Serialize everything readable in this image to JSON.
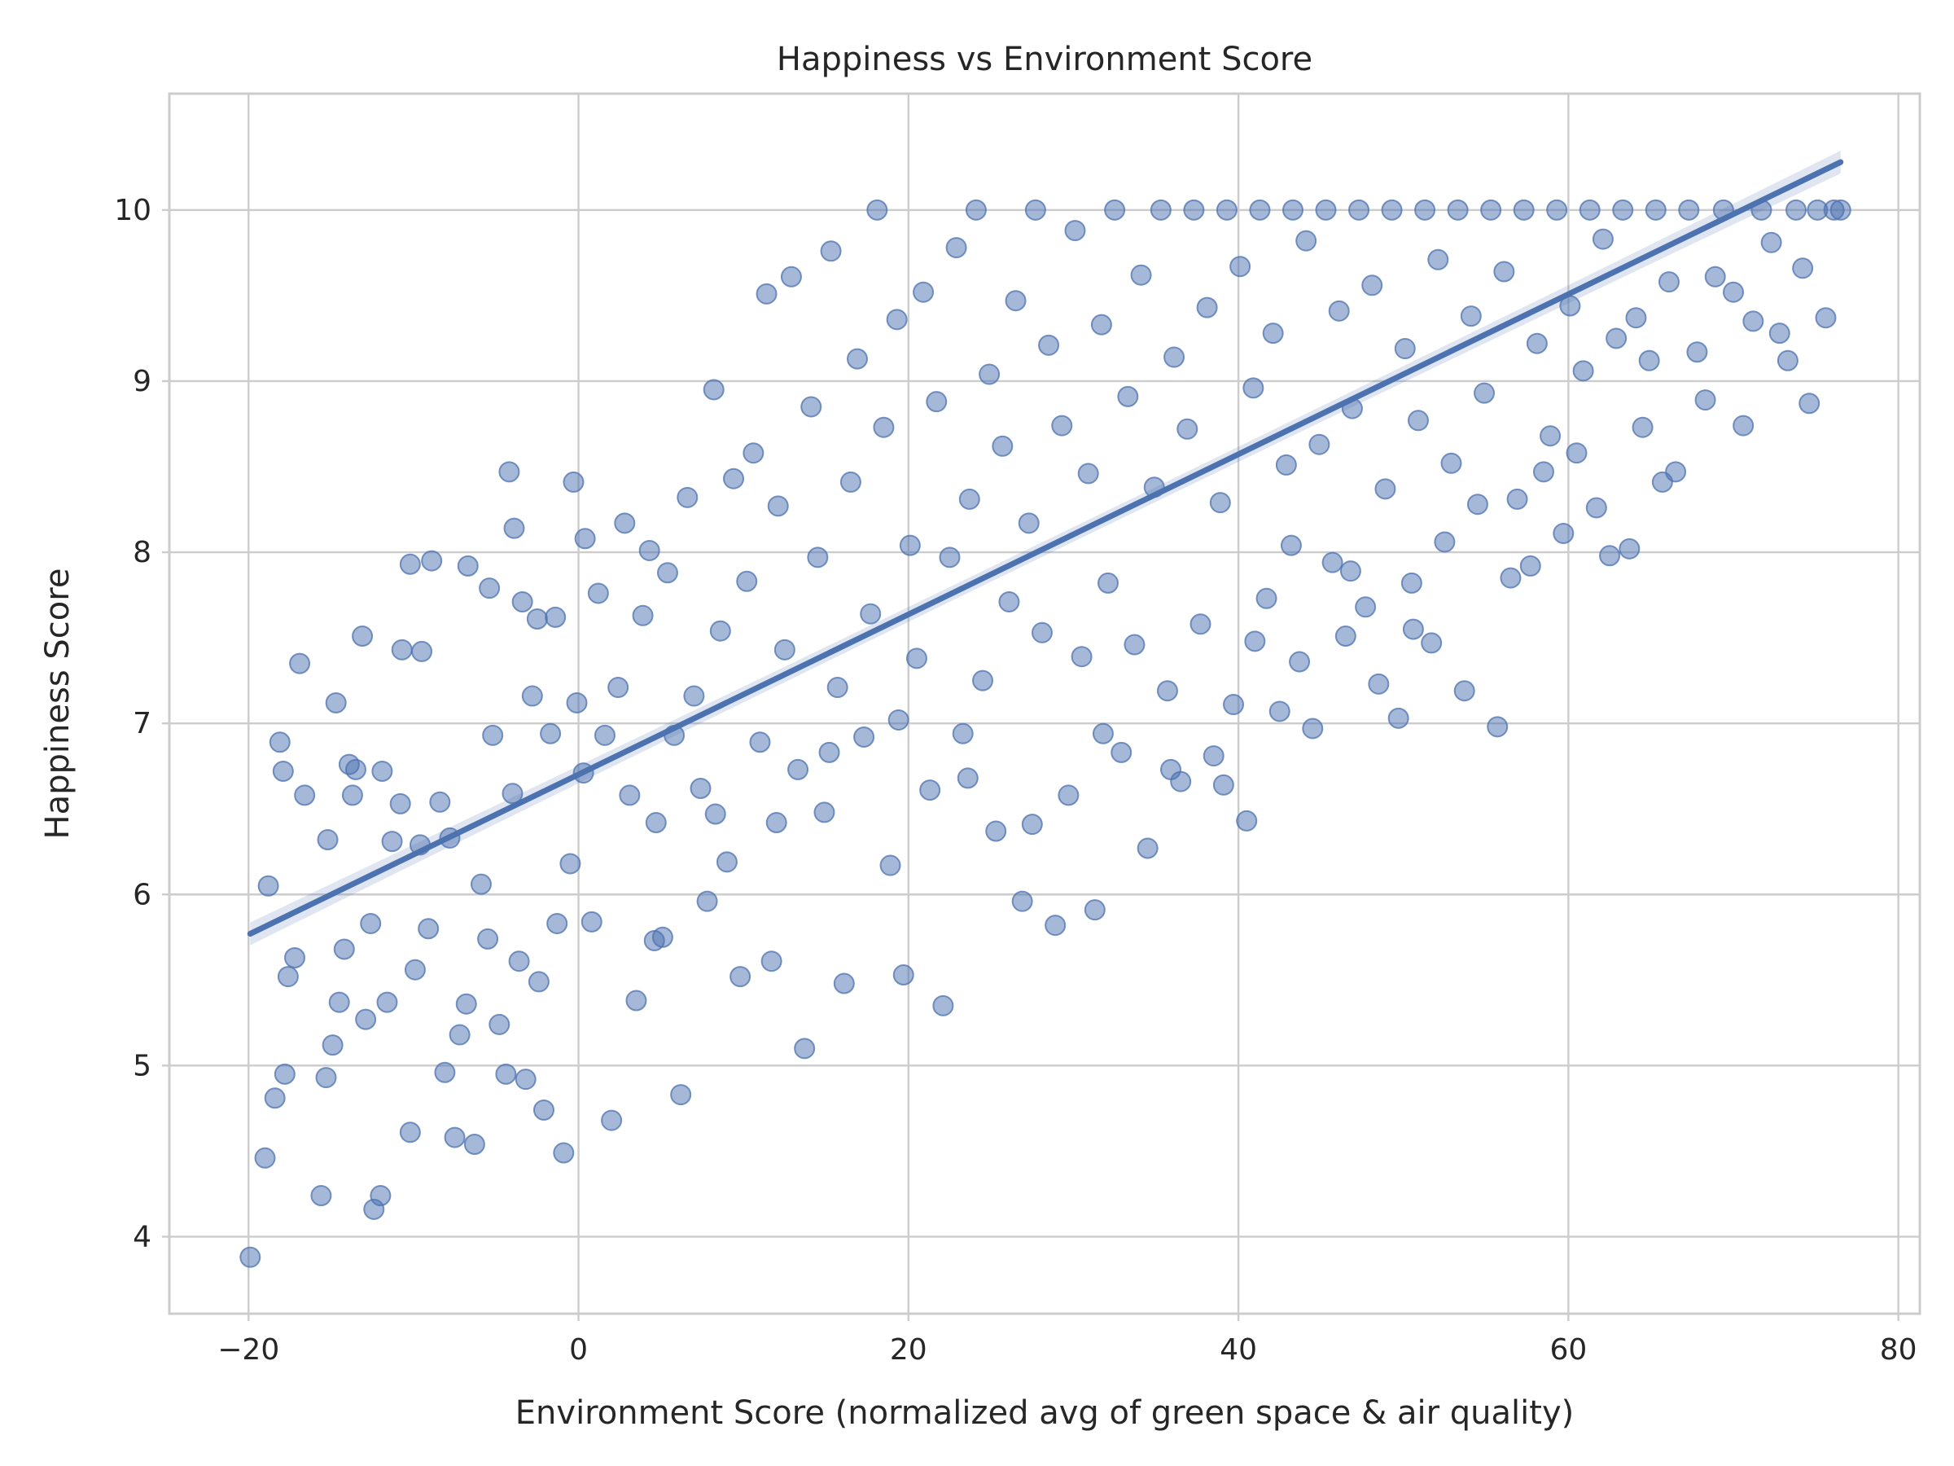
{
  "chart_data": {
    "type": "scatter",
    "title": "Happiness vs Environment Score",
    "xlabel": "Environment Score (normalized avg of green space & air quality)",
    "ylabel": "Happiness Score",
    "xlim": [
      -24.8,
      81.3
    ],
    "ylim": [
      3.55,
      10.68
    ],
    "xticks": [
      -20,
      0,
      20,
      40,
      60,
      80
    ],
    "xtick_labels": [
      "−20",
      "0",
      "20",
      "40",
      "60",
      "80"
    ],
    "yticks": [
      4,
      5,
      6,
      7,
      8,
      9,
      10
    ],
    "ytick_labels": [
      "4",
      "5",
      "6",
      "7",
      "8",
      "9",
      "10"
    ],
    "grid": true,
    "legend": "none",
    "point_color": "#4c72b0",
    "point_opacity": 0.5,
    "cap_value": 10,
    "regression_line": {
      "x": [
        -19.9,
        76.5
      ],
      "y": [
        5.77,
        10.28
      ],
      "color": "#4c72b0",
      "ci_band": true
    },
    "points": [
      [
        -19.9,
        3.88
      ],
      [
        -19.0,
        4.46
      ],
      [
        -18.4,
        4.81
      ],
      [
        -17.8,
        4.95
      ],
      [
        -17.2,
        5.63
      ],
      [
        -16.6,
        6.58
      ],
      [
        -17.9,
        6.72
      ],
      [
        -18.8,
        6.05
      ],
      [
        -18.1,
        6.89
      ],
      [
        -17.6,
        5.52
      ],
      [
        -15.6,
        4.24
      ],
      [
        -15.2,
        6.32
      ],
      [
        -14.9,
        5.12
      ],
      [
        -14.5,
        5.37
      ],
      [
        -14.2,
        5.68
      ],
      [
        -13.7,
        6.58
      ],
      [
        -13.5,
        6.73
      ],
      [
        -12.9,
        5.27
      ],
      [
        -12.4,
        4.16
      ],
      [
        -12.0,
        4.24
      ],
      [
        -11.6,
        5.37
      ],
      [
        -11.3,
        6.31
      ],
      [
        -10.8,
        6.53
      ],
      [
        -10.2,
        4.61
      ],
      [
        -9.9,
        5.56
      ],
      [
        -9.5,
        7.42
      ],
      [
        -9.1,
        5.8
      ],
      [
        -8.4,
        6.54
      ],
      [
        -8.1,
        4.96
      ],
      [
        -7.8,
        6.33
      ],
      [
        -7.5,
        4.58
      ],
      [
        -7.2,
        5.18
      ],
      [
        -6.8,
        5.36
      ],
      [
        -6.3,
        4.54
      ],
      [
        -5.9,
        6.06
      ],
      [
        -5.5,
        5.74
      ],
      [
        -5.2,
        6.93
      ],
      [
        -4.8,
        5.24
      ],
      [
        -4.4,
        4.95
      ],
      [
        -4.0,
        6.59
      ],
      [
        -3.6,
        5.61
      ],
      [
        -3.2,
        4.92
      ],
      [
        -2.8,
        7.16
      ],
      [
        -2.4,
        5.49
      ],
      [
        -2.1,
        4.74
      ],
      [
        -1.7,
        6.94
      ],
      [
        -1.3,
        5.83
      ],
      [
        -0.9,
        4.49
      ],
      [
        -0.5,
        6.18
      ],
      [
        -0.1,
        7.12
      ],
      [
        -16.9,
        7.35
      ],
      [
        -14.7,
        7.12
      ],
      [
        -13.1,
        7.51
      ],
      [
        -10.7,
        7.43
      ],
      [
        -10.2,
        7.93
      ],
      [
        -8.9,
        7.95
      ],
      [
        -6.7,
        7.92
      ],
      [
        -5.4,
        7.79
      ],
      [
        -3.9,
        8.14
      ],
      [
        -3.4,
        7.71
      ],
      [
        -4.2,
        8.47
      ],
      [
        -2.5,
        7.61
      ],
      [
        -1.4,
        7.62
      ],
      [
        -0.3,
        8.41
      ],
      [
        0.4,
        8.08
      ],
      [
        -15.3,
        4.93
      ],
      [
        -13.9,
        6.76
      ],
      [
        -12.6,
        5.83
      ],
      [
        -11.9,
        6.72
      ],
      [
        -9.6,
        6.29
      ],
      [
        0.3,
        6.71
      ],
      [
        0.8,
        5.84
      ],
      [
        1.2,
        7.76
      ],
      [
        1.6,
        6.93
      ],
      [
        2.0,
        4.68
      ],
      [
        2.4,
        7.21
      ],
      [
        2.8,
        8.17
      ],
      [
        3.1,
        6.58
      ],
      [
        3.5,
        5.38
      ],
      [
        3.9,
        7.63
      ],
      [
        4.3,
        8.01
      ],
      [
        4.7,
        6.42
      ],
      [
        5.1,
        5.75
      ],
      [
        5.4,
        7.88
      ],
      [
        5.8,
        6.93
      ],
      [
        6.2,
        4.83
      ],
      [
        6.6,
        8.32
      ],
      [
        7.0,
        7.16
      ],
      [
        7.4,
        6.62
      ],
      [
        7.8,
        5.96
      ],
      [
        8.2,
        8.95
      ],
      [
        8.6,
        7.54
      ],
      [
        9.0,
        6.19
      ],
      [
        9.4,
        8.43
      ],
      [
        9.8,
        5.52
      ],
      [
        10.2,
        7.83
      ],
      [
        10.6,
        8.58
      ],
      [
        11.0,
        6.89
      ],
      [
        11.4,
        9.51
      ],
      [
        11.7,
        5.61
      ],
      [
        12.1,
        8.27
      ],
      [
        12.5,
        7.43
      ],
      [
        12.9,
        9.61
      ],
      [
        13.3,
        6.73
      ],
      [
        13.7,
        5.1
      ],
      [
        14.1,
        8.85
      ],
      [
        14.5,
        7.97
      ],
      [
        14.9,
        6.48
      ],
      [
        15.3,
        9.76
      ],
      [
        15.7,
        7.21
      ],
      [
        16.1,
        5.48
      ],
      [
        16.5,
        8.41
      ],
      [
        16.9,
        9.13
      ],
      [
        17.3,
        6.92
      ],
      [
        17.7,
        7.64
      ],
      [
        18.1,
        10.0
      ],
      [
        18.5,
        8.73
      ],
      [
        18.9,
        6.17
      ],
      [
        19.3,
        9.36
      ],
      [
        19.7,
        5.53
      ],
      [
        20.1,
        8.04
      ],
      [
        20.5,
        7.38
      ],
      [
        20.9,
        9.52
      ],
      [
        21.3,
        6.61
      ],
      [
        21.7,
        8.88
      ],
      [
        22.1,
        5.35
      ],
      [
        22.5,
        7.97
      ],
      [
        22.9,
        9.78
      ],
      [
        23.3,
        6.94
      ],
      [
        23.7,
        8.31
      ],
      [
        24.1,
        10.0
      ],
      [
        24.5,
        7.25
      ],
      [
        24.9,
        9.04
      ],
      [
        25.3,
        6.37
      ],
      [
        25.7,
        8.62
      ],
      [
        26.1,
        7.71
      ],
      [
        26.5,
        9.47
      ],
      [
        26.9,
        5.96
      ],
      [
        27.3,
        8.17
      ],
      [
        27.7,
        10.0
      ],
      [
        28.1,
        7.53
      ],
      [
        28.5,
        9.21
      ],
      [
        28.9,
        5.82
      ],
      [
        29.3,
        8.74
      ],
      [
        29.7,
        6.58
      ],
      [
        30.1,
        9.88
      ],
      [
        30.5,
        7.39
      ],
      [
        30.9,
        8.46
      ],
      [
        31.3,
        5.91
      ],
      [
        31.7,
        9.33
      ],
      [
        32.1,
        7.82
      ],
      [
        32.5,
        10.0
      ],
      [
        32.9,
        6.83
      ],
      [
        33.3,
        8.91
      ],
      [
        33.7,
        7.46
      ],
      [
        34.1,
        9.62
      ],
      [
        34.5,
        6.27
      ],
      [
        34.9,
        8.38
      ],
      [
        35.3,
        10.0
      ],
      [
        35.7,
        7.19
      ],
      [
        36.1,
        9.14
      ],
      [
        36.5,
        6.66
      ],
      [
        36.9,
        8.72
      ],
      [
        37.3,
        10.0
      ],
      [
        37.7,
        7.58
      ],
      [
        38.1,
        9.43
      ],
      [
        38.5,
        6.81
      ],
      [
        38.9,
        8.29
      ],
      [
        39.3,
        10.0
      ],
      [
        39.7,
        7.11
      ],
      [
        40.1,
        9.67
      ],
      [
        40.5,
        6.43
      ],
      [
        40.9,
        8.96
      ],
      [
        41.3,
        10.0
      ],
      [
        41.7,
        7.73
      ],
      [
        42.1,
        9.28
      ],
      [
        42.5,
        7.07
      ],
      [
        42.9,
        8.51
      ],
      [
        43.3,
        10.0
      ],
      [
        43.7,
        7.36
      ],
      [
        44.1,
        9.82
      ],
      [
        44.5,
        6.97
      ],
      [
        44.9,
        8.63
      ],
      [
        45.3,
        10.0
      ],
      [
        45.7,
        7.94
      ],
      [
        46.1,
        9.41
      ],
      [
        46.5,
        7.51
      ],
      [
        46.9,
        8.84
      ],
      [
        47.3,
        10.0
      ],
      [
        47.7,
        7.68
      ],
      [
        48.1,
        9.56
      ],
      [
        48.5,
        7.23
      ],
      [
        48.9,
        8.37
      ],
      [
        49.3,
        10.0
      ],
      [
        49.7,
        7.03
      ],
      [
        50.1,
        9.19
      ],
      [
        50.5,
        7.82
      ],
      [
        50.9,
        8.77
      ],
      [
        51.3,
        10.0
      ],
      [
        51.7,
        7.47
      ],
      [
        52.1,
        9.71
      ],
      [
        52.5,
        8.06
      ],
      [
        52.9,
        8.52
      ],
      [
        53.3,
        10.0
      ],
      [
        53.7,
        7.19
      ],
      [
        54.1,
        9.38
      ],
      [
        54.5,
        8.28
      ],
      [
        54.9,
        8.93
      ],
      [
        55.3,
        10.0
      ],
      [
        55.7,
        6.98
      ],
      [
        56.1,
        9.64
      ],
      [
        56.5,
        7.85
      ],
      [
        56.9,
        8.31
      ],
      [
        57.3,
        10.0
      ],
      [
        57.7,
        7.92
      ],
      [
        58.1,
        9.22
      ],
      [
        58.5,
        8.47
      ],
      [
        58.9,
        8.68
      ],
      [
        59.3,
        10.0
      ],
      [
        59.7,
        8.11
      ],
      [
        60.1,
        9.44
      ],
      [
        60.5,
        8.58
      ],
      [
        60.9,
        9.06
      ],
      [
        61.3,
        10.0
      ],
      [
        61.7,
        8.26
      ],
      [
        62.1,
        9.83
      ],
      [
        62.5,
        7.98
      ],
      [
        62.9,
        9.25
      ],
      [
        63.3,
        10.0
      ],
      [
        63.7,
        8.02
      ],
      [
        64.1,
        9.37
      ],
      [
        64.5,
        8.73
      ],
      [
        64.9,
        9.12
      ],
      [
        65.3,
        10.0
      ],
      [
        65.7,
        8.41
      ],
      [
        66.1,
        9.58
      ],
      [
        66.5,
        8.47
      ],
      [
        67.3,
        10.0
      ],
      [
        67.8,
        9.17
      ],
      [
        68.3,
        8.89
      ],
      [
        68.9,
        9.61
      ],
      [
        69.4,
        10.0
      ],
      [
        70.0,
        9.52
      ],
      [
        70.6,
        8.74
      ],
      [
        71.2,
        9.35
      ],
      [
        71.7,
        10.0
      ],
      [
        72.3,
        9.81
      ],
      [
        72.8,
        9.28
      ],
      [
        73.3,
        9.12
      ],
      [
        73.8,
        10.0
      ],
      [
        74.2,
        9.66
      ],
      [
        74.6,
        8.87
      ],
      [
        75.1,
        10.0
      ],
      [
        75.6,
        9.37
      ],
      [
        76.1,
        10.0
      ],
      [
        76.5,
        10.0
      ],
      [
        41.0,
        7.48
      ],
      [
        43.2,
        8.04
      ],
      [
        46.8,
        7.89
      ],
      [
        50.6,
        7.55
      ],
      [
        15.2,
        6.83
      ],
      [
        19.4,
        7.02
      ],
      [
        23.6,
        6.68
      ],
      [
        27.5,
        6.41
      ],
      [
        31.8,
        6.94
      ],
      [
        35.9,
        6.73
      ],
      [
        39.1,
        6.64
      ],
      [
        12.0,
        6.42
      ],
      [
        8.3,
        6.47
      ],
      [
        4.6,
        5.73
      ]
    ]
  }
}
